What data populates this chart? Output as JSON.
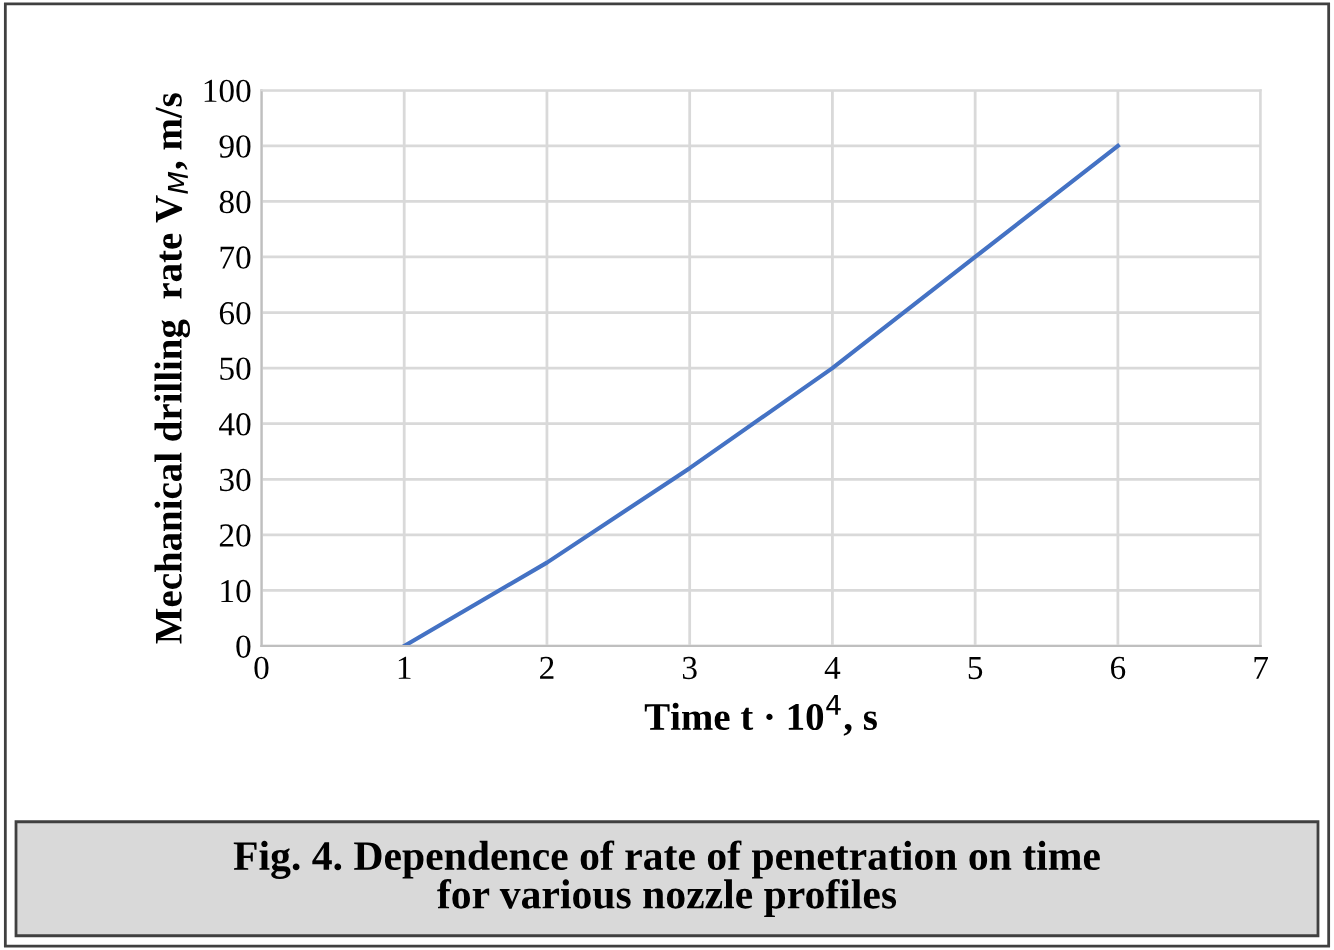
{
  "chart_data": {
    "type": "line",
    "xlabel": "Time t · 10$^{4}$, s",
    "ylabel": "Mechanical drilling  rate V$_{M}$, m/s",
    "x": [
      1,
      2,
      3,
      4,
      5,
      6
    ],
    "series": [
      {
        "color": "#4472c4",
        "values": [
          0,
          15,
          32,
          50,
          70,
          90
        ]
      }
    ],
    "xlim": [
      0,
      7
    ],
    "xticks": [
      0,
      1,
      2,
      3,
      4,
      5,
      6,
      7
    ],
    "ylim": [
      0,
      100
    ],
    "yticks": [
      0,
      10,
      20,
      30,
      40,
      50,
      60,
      70,
      80,
      90,
      100
    ],
    "grid": true,
    "marker": "none",
    "line_style": "solid",
    "legend": false,
    "annotations": [
      "Fig. 4. Dependence of rate of penetration on time\nfor various nozzle profiles"
    ]
  }
}
